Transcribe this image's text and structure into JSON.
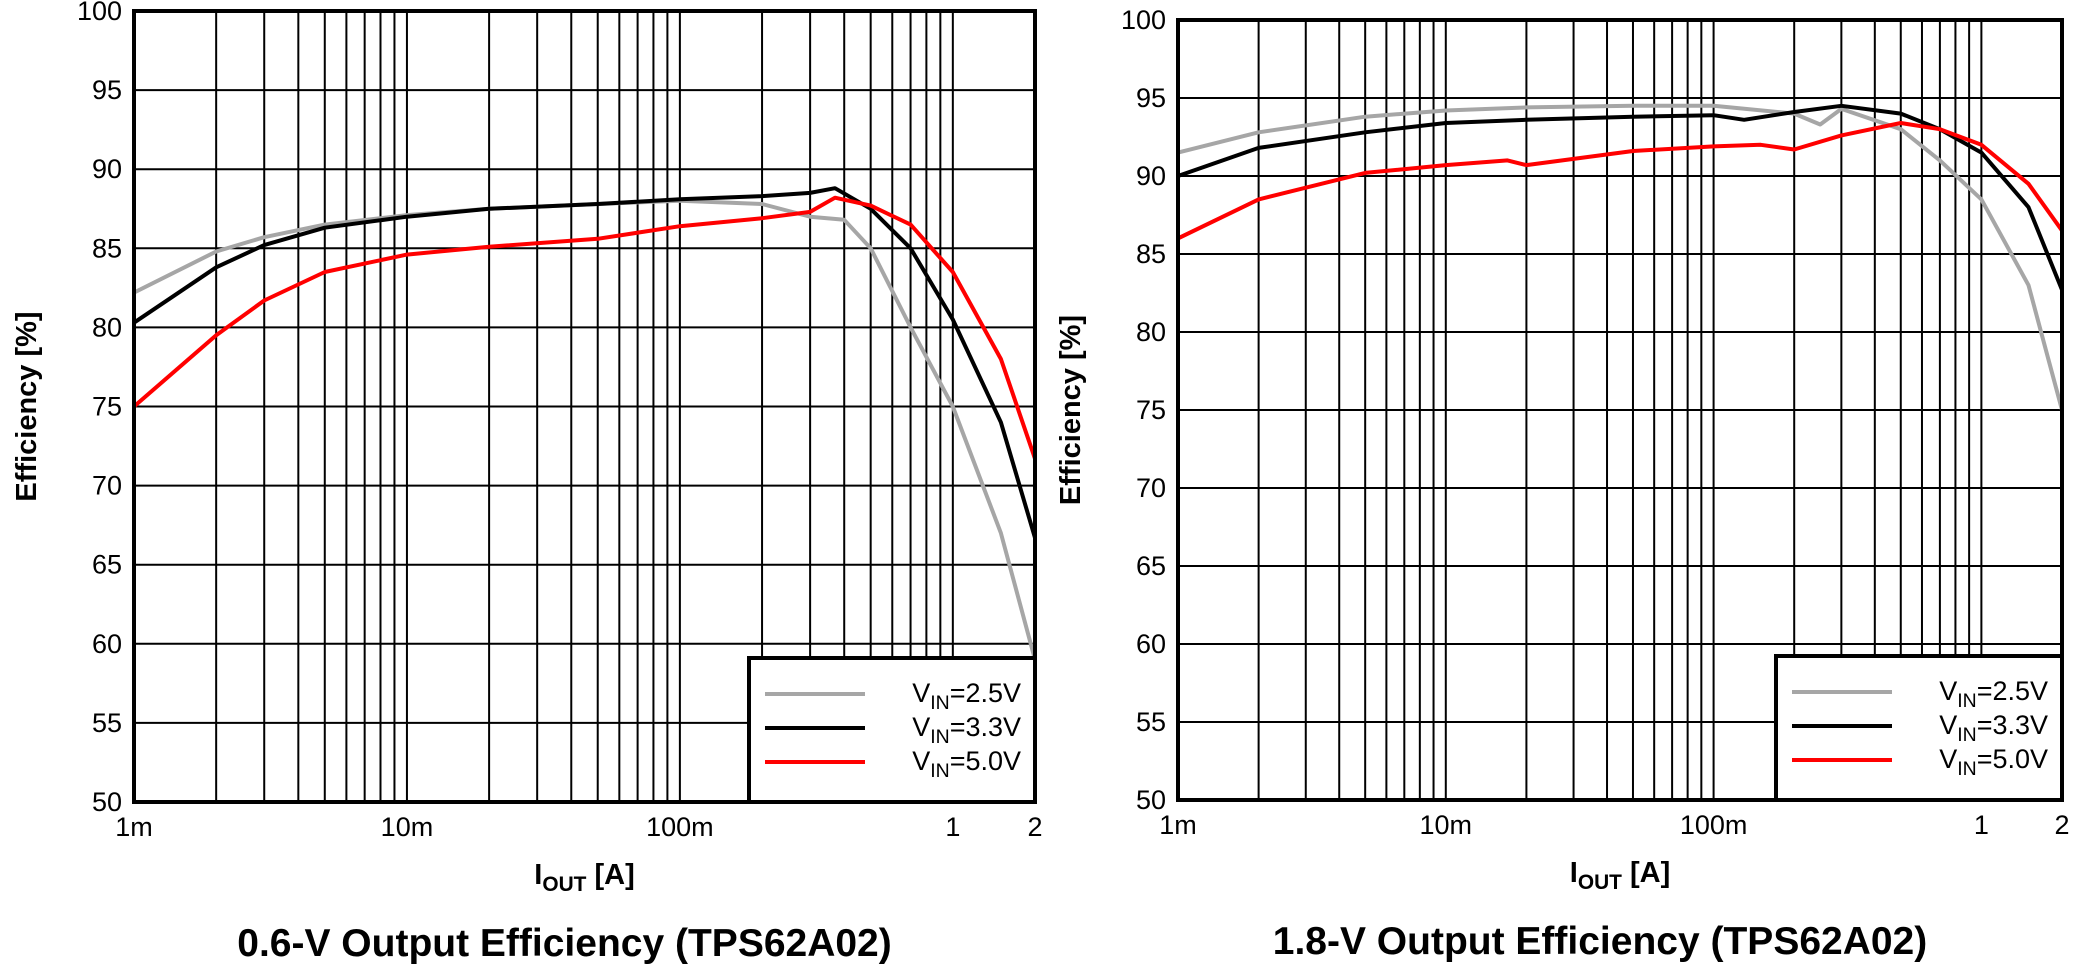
{
  "chart_data": [
    {
      "type": "line",
      "title": "0.6-V Output Efficiency (TPS62A02)",
      "x_label": "IOUT [A]",
      "y_label": "Efficiency [%]",
      "xscale": "log",
      "xlim": [
        0.001,
        2
      ],
      "ylim": [
        50,
        100
      ],
      "xticks": [
        {
          "value": 0.001,
          "label": "1m"
        },
        {
          "value": 0.01,
          "label": "10m"
        },
        {
          "value": 0.1,
          "label": "100m"
        },
        1,
        2
      ],
      "yticks": [
        50,
        55,
        60,
        65,
        70,
        75,
        80,
        85,
        90,
        95,
        100
      ],
      "grid": true,
      "minor_grid": true,
      "legend": "lower right",
      "series": [
        {
          "name": "VIN=2.5V",
          "color": "#a6a6a6",
          "x": [
            0.001,
            0.002,
            0.003,
            0.005,
            0.01,
            0.02,
            0.05,
            0.1,
            0.2,
            0.3,
            0.4,
            0.5,
            0.7,
            1,
            1.5,
            2
          ],
          "values": [
            82.2,
            84.8,
            85.7,
            86.5,
            87.1,
            87.5,
            87.8,
            88.0,
            87.8,
            87.0,
            86.8,
            85,
            80,
            75,
            67,
            59
          ]
        },
        {
          "name": "VIN=3.3V",
          "color": "#000000",
          "x": [
            0.001,
            0.002,
            0.003,
            0.005,
            0.01,
            0.02,
            0.05,
            0.1,
            0.2,
            0.3,
            0.37,
            0.5,
            0.7,
            1,
            1.5,
            2
          ],
          "values": [
            80.3,
            83.8,
            85.2,
            86.3,
            87.0,
            87.5,
            87.8,
            88.1,
            88.3,
            88.5,
            88.8,
            87.5,
            85,
            80.5,
            74,
            66.7
          ]
        },
        {
          "name": "VIN=5.0V",
          "color": "#ff0000",
          "x": [
            0.001,
            0.002,
            0.003,
            0.005,
            0.01,
            0.02,
            0.05,
            0.1,
            0.2,
            0.3,
            0.37,
            0.5,
            0.7,
            1,
            1.5,
            2
          ],
          "values": [
            75,
            79.5,
            81.7,
            83.5,
            84.6,
            85.1,
            85.6,
            86.4,
            86.9,
            87.3,
            88.2,
            87.7,
            86.5,
            83.5,
            78,
            71.7
          ]
        }
      ]
    },
    {
      "type": "line",
      "title": "1.8-V Output Efficiency (TPS62A02)",
      "x_label": "IOUT [A]",
      "y_label": "Efficiency [%]",
      "xscale": "log",
      "xlim": [
        0.001,
        2
      ],
      "ylim": [
        50,
        100
      ],
      "xticks": [
        {
          "value": 0.001,
          "label": "1m"
        },
        {
          "value": 0.01,
          "label": "10m"
        },
        {
          "value": 0.1,
          "label": "100m"
        },
        1,
        2
      ],
      "yticks": [
        50,
        55,
        60,
        65,
        70,
        75,
        80,
        85,
        90,
        95,
        100
      ],
      "grid": true,
      "minor_grid": true,
      "legend": "lower right",
      "series": [
        {
          "name": "VIN=2.5V",
          "color": "#a6a6a6",
          "x": [
            0.001,
            0.002,
            0.005,
            0.01,
            0.02,
            0.05,
            0.1,
            0.2,
            0.25,
            0.3,
            0.5,
            0.7,
            1,
            1.5,
            2
          ],
          "values": [
            91.5,
            92.8,
            93.8,
            94.2,
            94.4,
            94.5,
            94.5,
            94,
            93.3,
            94.3,
            93,
            91,
            88.5,
            83,
            75
          ]
        },
        {
          "name": "VIN=3.3V",
          "color": "#000000",
          "x": [
            0.001,
            0.002,
            0.005,
            0.01,
            0.02,
            0.05,
            0.1,
            0.13,
            0.2,
            0.3,
            0.5,
            0.7,
            1,
            1.5,
            2
          ],
          "values": [
            90,
            91.8,
            92.8,
            93.4,
            93.6,
            93.8,
            93.9,
            93.6,
            94.1,
            94.5,
            94.0,
            93,
            91.5,
            88,
            82.7
          ]
        },
        {
          "name": "VIN=5.0V",
          "color": "#ff0000",
          "x": [
            0.001,
            0.002,
            0.005,
            0.01,
            0.017,
            0.02,
            0.05,
            0.1,
            0.15,
            0.2,
            0.3,
            0.5,
            0.7,
            1,
            1.5,
            2
          ],
          "values": [
            86,
            88.5,
            90.2,
            90.7,
            91.0,
            90.7,
            91.6,
            91.9,
            92,
            91.7,
            92.6,
            93.4,
            93,
            92,
            89.5,
            86.5
          ]
        }
      ]
    }
  ]
}
